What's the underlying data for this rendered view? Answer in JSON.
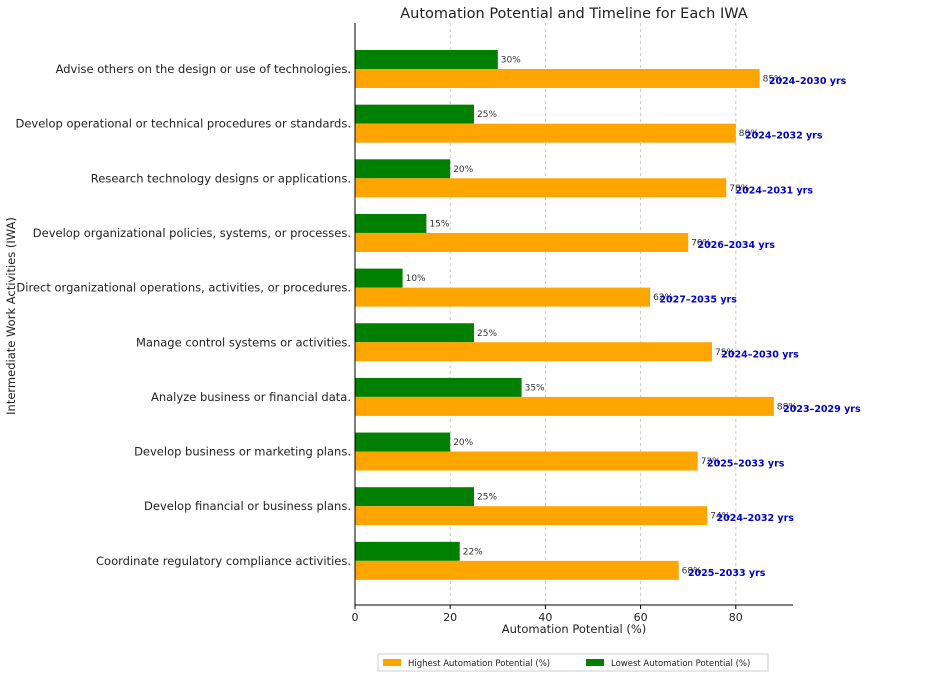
{
  "chart_data": {
    "type": "bar",
    "orientation": "horizontal",
    "title": "Automation Potential and Timeline for Each IWA",
    "xlabel": "Automation Potential (%)",
    "ylabel": "Intermediate Work Activities (IWA)",
    "xlim": [
      0,
      92
    ],
    "xticks": [
      0,
      20,
      40,
      60,
      80
    ],
    "grid": "vertical dashed",
    "legend_position": "bottom-center",
    "categories": [
      "Advise others on the design or use of technologies.",
      "Develop operational or technical procedures or standards.",
      "Research technology designs or applications.",
      "Develop organizational policies, systems, or processes.",
      "Direct organizational operations, activities, or procedures.",
      "Manage control systems or activities.",
      "Analyze business or financial data.",
      "Develop business or marketing plans.",
      "Develop financial or business plans.",
      "Coordinate regulatory compliance activities."
    ],
    "series": [
      {
        "name": "Highest Automation Potential (%)",
        "color": "#FFA500",
        "values": [
          85,
          80,
          78,
          70,
          62,
          75,
          88,
          72,
          74,
          68
        ],
        "labels": [
          "85%",
          "80%",
          "78%",
          "70%",
          "62%",
          "75%",
          "88%",
          "72%",
          "74%",
          "68%"
        ]
      },
      {
        "name": "Lowest Automation Potential (%)",
        "color": "#008000",
        "values": [
          30,
          25,
          20,
          15,
          10,
          25,
          35,
          20,
          25,
          22
        ],
        "labels": [
          "30%",
          "25%",
          "20%",
          "15%",
          "10%",
          "25%",
          "35%",
          "20%",
          "25%",
          "22%"
        ]
      }
    ],
    "timelines": [
      "2024–2030 yrs",
      "2024–2032 yrs",
      "2024–2031 yrs",
      "2026–2034 yrs",
      "2027–2035 yrs",
      "2024–2030 yrs",
      "2023–2029 yrs",
      "2025–2033 yrs",
      "2024–2032 yrs",
      "2025–2033 yrs"
    ],
    "timeline_color": "#0000CC"
  }
}
